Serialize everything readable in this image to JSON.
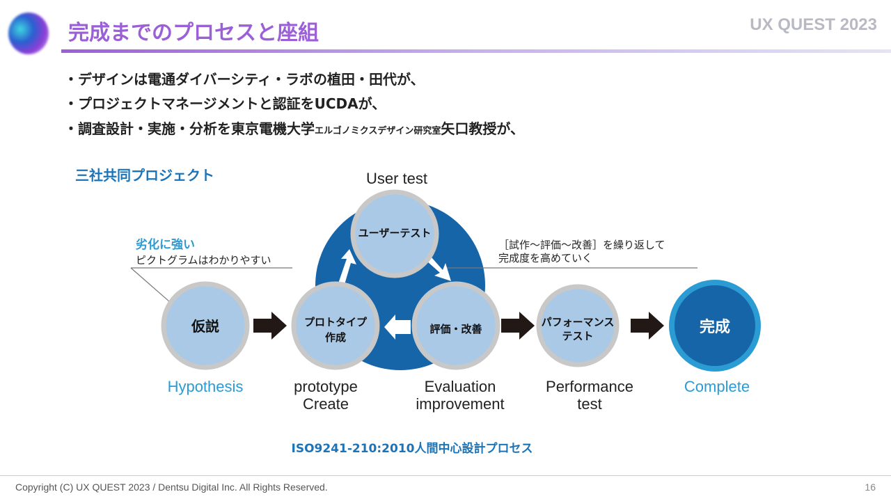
{
  "header": {
    "title": "完成までのプロセスと座組",
    "brand": "UX QUEST 2023"
  },
  "bullets": [
    "・デザインは電通ダイバーシティ・ラボの植田・田代が、",
    "・プロジェクトマネージメントと認証をUCDAが、"
  ],
  "bullet3": {
    "main": "・調査設計・実施・分析を東京電機大学",
    "small": "エルゴノミクスデザイン研究室",
    "tail": "矢口教授が、"
  },
  "diagram": {
    "joint_label": "三社共同プロジェクト",
    "user_test_title": "User test",
    "callout_left": {
      "highlight": "劣化に強い",
      "text": "ピクトグラムはわかりやすい"
    },
    "callout_right": {
      "line1": "［試作～評価～改善］を繰り返して",
      "line2": "完成度を高めていく"
    },
    "nodes": {
      "hypothesis": {
        "jp": "仮説",
        "en": "Hypothesis"
      },
      "prototype": {
        "jp1": "プロトタイプ",
        "jp2": "作成",
        "en1": "prototype",
        "en2": "Create"
      },
      "user_test": {
        "jp": "ユーザーテスト"
      },
      "evaluation": {
        "jp": "評価・改善",
        "en1": "Evaluation",
        "en2": "improvement"
      },
      "performance": {
        "jp1": "パフォーマンス",
        "jp2": "テスト",
        "en1": "Performance",
        "en2": "test"
      },
      "complete": {
        "jp": "完成",
        "en": "Complete"
      }
    },
    "caption": "ISO9241-210:2010人間中心設計プロセス",
    "colors": {
      "cycle": "#1565a8",
      "node_fill": "#a9c9e6",
      "node_ring": "#c8c8c8",
      "complete_ring": "#2b9bd3",
      "accent_text": "#2a9bd3"
    }
  },
  "footer": {
    "copyright": "Copyright (C) UX QUEST 2023 / Dentsu Digital Inc. All Rights Reserved.",
    "page": "16"
  }
}
